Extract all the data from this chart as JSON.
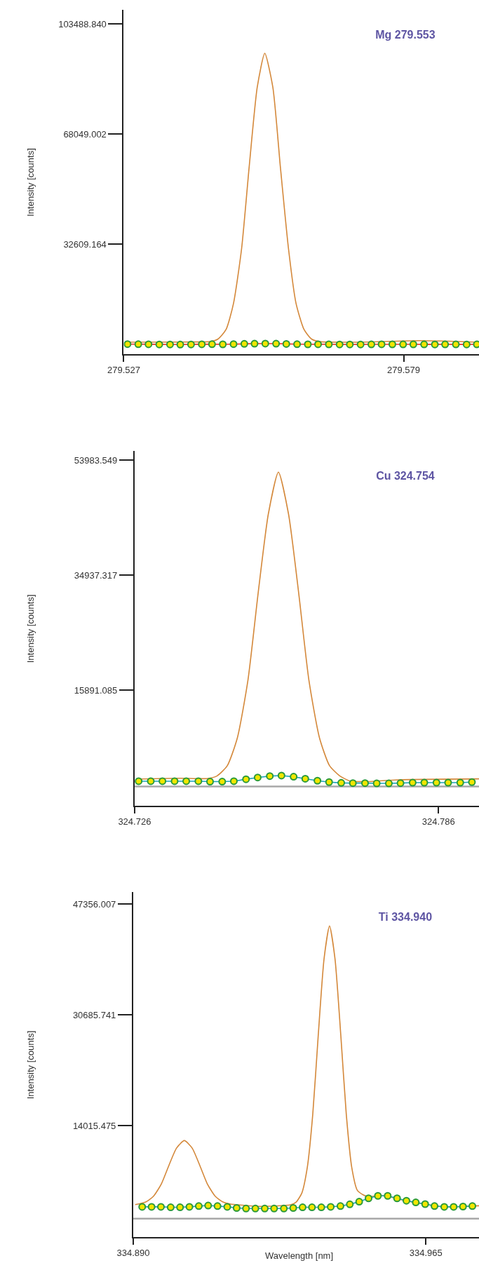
{
  "chart_data": [
    {
      "type": "line",
      "annotations": [
        "Mg 279.553"
      ],
      "ylabel": "Intensity [counts]",
      "xlim": [
        279.527,
        279.593
      ],
      "ylim": [
        -2830,
        108000
      ],
      "xticks": [
        279.527,
        279.579
      ],
      "yticks": [
        32609.164,
        68049.002,
        {
          "value": 103488.84,
          "label": "103488.840"
        }
      ],
      "series": [
        {
          "color": "#d4883a",
          "marker": "none",
          "x": [
            279.5275,
            279.54,
            279.5431,
            279.5445,
            279.546,
            279.5474,
            279.5489,
            279.5503,
            279.5518,
            279.5532,
            279.5547,
            279.5561,
            279.5576,
            279.559,
            279.5605,
            279.5619,
            279.5634,
            279.57,
            279.582,
            279.593
          ],
          "values": [
            1000,
            1100,
            1200,
            2030,
            5080,
            13580,
            31200,
            57400,
            83070,
            94000,
            83070,
            57400,
            31200,
            13580,
            5080,
            2030,
            1200,
            1000,
            1500,
            1000
          ]
        },
        {
          "color": "#e8302a",
          "marker": "circle",
          "x": [
            279.5277,
            279.5297,
            279.5316,
            279.5336,
            279.5356,
            279.5375,
            279.5395,
            279.5415,
            279.5434,
            279.5454,
            279.5474,
            279.5494,
            279.5513,
            279.5533,
            279.5553,
            279.5572,
            279.5592,
            279.5612,
            279.5631,
            279.5651,
            279.5671,
            279.569,
            279.571,
            279.573,
            279.5749,
            279.5769,
            279.5789,
            279.5808,
            279.5828,
            279.5848,
            279.5867,
            279.5887,
            279.5907,
            279.5926
          ],
          "values": [
            400,
            380,
            350,
            300,
            280,
            260,
            300,
            350,
            380,
            330,
            400,
            480,
            540,
            560,
            540,
            470,
            380,
            330,
            350,
            330,
            300,
            290,
            300,
            320,
            340,
            330,
            320,
            330,
            310,
            300,
            320,
            310,
            300,
            320
          ]
        }
      ]
    },
    {
      "type": "line",
      "annotations": [
        "Cu 324.754"
      ],
      "ylabel": "Intensity [counts]",
      "xlim": [
        324.726,
        324.794
      ],
      "ylim": [
        -3200,
        55500
      ],
      "xticks": [
        324.726,
        324.786
      ],
      "yticks": [
        15891.085,
        34937.317,
        53983.549
      ],
      "ref_lines": [
        {
          "axis": "y",
          "value": 0,
          "color": "#a8a8a8"
        }
      ],
      "series": [
        {
          "color": "#d4883a",
          "marker": "none",
          "x": [
            324.7265,
            324.735,
            324.7403,
            324.7423,
            324.7443,
            324.7463,
            324.7484,
            324.7504,
            324.7524,
            324.7544,
            324.7564,
            324.7584,
            324.7604,
            324.7625,
            324.7645,
            324.7665,
            324.7685,
            324.772,
            324.778,
            324.794
          ],
          "values": [
            1200,
            1350,
            1300,
            1750,
            3420,
            8060,
            17680,
            32000,
            45030,
            51990,
            45030,
            32000,
            17680,
            8060,
            3420,
            1750,
            900,
            800,
            1100,
            1250
          ]
        },
        {
          "color": "#1aa3b8",
          "marker": "circle",
          "x": [
            324.7268,
            324.7292,
            324.7315,
            324.7339,
            324.7362,
            324.7386,
            324.7409,
            324.7433,
            324.7456,
            324.748,
            324.7503,
            324.7527,
            324.755,
            324.7574,
            324.7597,
            324.7621,
            324.7644,
            324.7668,
            324.7691,
            324.7715,
            324.7738,
            324.7762,
            324.7785,
            324.7809,
            324.7832,
            324.7856,
            324.7879,
            324.7903,
            324.7926
          ],
          "values": [
            868,
            868,
            868,
            868,
            868,
            868,
            800,
            800,
            868,
            1192,
            1472,
            1715,
            1797,
            1600,
            1274,
            949,
            717,
            590,
            550,
            550,
            510,
            510,
            550,
            630,
            630,
            630,
            630,
            630,
            717
          ]
        }
      ]
    },
    {
      "type": "line",
      "annotations": [
        "Ti 334.940"
      ],
      "ylabel": "Intensity [counts]",
      "xlabel": "Wavelength [nm]",
      "xlim": [
        334.89,
        334.9786
      ],
      "ylim": [
        -2760,
        49150
      ],
      "xticks": [
        {
          "value": 334.89,
          "label": "334.890"
        },
        334.965
      ],
      "yticks": [
        14015.475,
        30685.741,
        47356.007
      ],
      "ref_lines": [
        {
          "axis": "y",
          "value": 0,
          "color": "#a8a8a8"
        }
      ],
      "series": [
        {
          "color": "#d4883a",
          "marker": "none",
          "x": [
            334.8905,
            334.8912,
            334.8932,
            334.8952,
            334.8972,
            334.8991,
            334.9011,
            334.9031,
            334.9051,
            334.9071,
            334.909,
            334.911,
            334.913,
            334.915,
            334.9169,
            334.922,
            334.9303,
            334.9317,
            334.9332,
            334.9346,
            334.936,
            334.9374,
            334.9389,
            334.9403,
            334.9417,
            334.9432,
            334.9446,
            334.946,
            334.9474,
            334.9489,
            334.9503,
            334.9525,
            334.9548,
            334.9572,
            334.9597,
            334.9621,
            334.9645,
            334.9669,
            334.9693,
            334.9717,
            334.9741,
            334.9765,
            334.9786
          ],
          "values": [
            2120,
            2190,
            2510,
            3390,
            5225,
            7955,
            10625,
            11760,
            10625,
            7955,
            5225,
            3390,
            2510,
            2190,
            2100,
            1850,
            2090,
            2470,
            3850,
            7690,
            15660,
            27510,
            39120,
            44065,
            39120,
            27510,
            15660,
            7690,
            4300,
            3600,
            3300,
            3440,
            3440,
            3070,
            2710,
            2460,
            2200,
            1980,
            1790,
            1790,
            1830,
            1900,
            1950
          ]
        },
        {
          "color": "#1aa3b8",
          "marker": "circle",
          "x": [
            334.8923,
            334.8947,
            334.8971,
            334.8996,
            334.902,
            334.9044,
            334.9068,
            334.9092,
            334.9116,
            334.9141,
            334.9165,
            334.9189,
            334.9213,
            334.9237,
            334.9261,
            334.9286,
            334.931,
            334.9334,
            334.9358,
            334.9382,
            334.9406,
            334.9431,
            334.9455,
            334.9479,
            334.9503,
            334.9527,
            334.9552,
            334.9576,
            334.96,
            334.9624,
            334.9648,
            334.9672,
            334.9697,
            334.9721,
            334.9745,
            334.9769
          ],
          "values": [
            1790,
            1790,
            1790,
            1720,
            1720,
            1790,
            1900,
            1980,
            1900,
            1790,
            1620,
            1535,
            1535,
            1535,
            1535,
            1535,
            1620,
            1720,
            1720,
            1720,
            1790,
            1900,
            2160,
            2560,
            3070,
            3440,
            3440,
            3070,
            2710,
            2460,
            2200,
            1900,
            1790,
            1790,
            1830,
            1900
          ]
        }
      ]
    }
  ]
}
